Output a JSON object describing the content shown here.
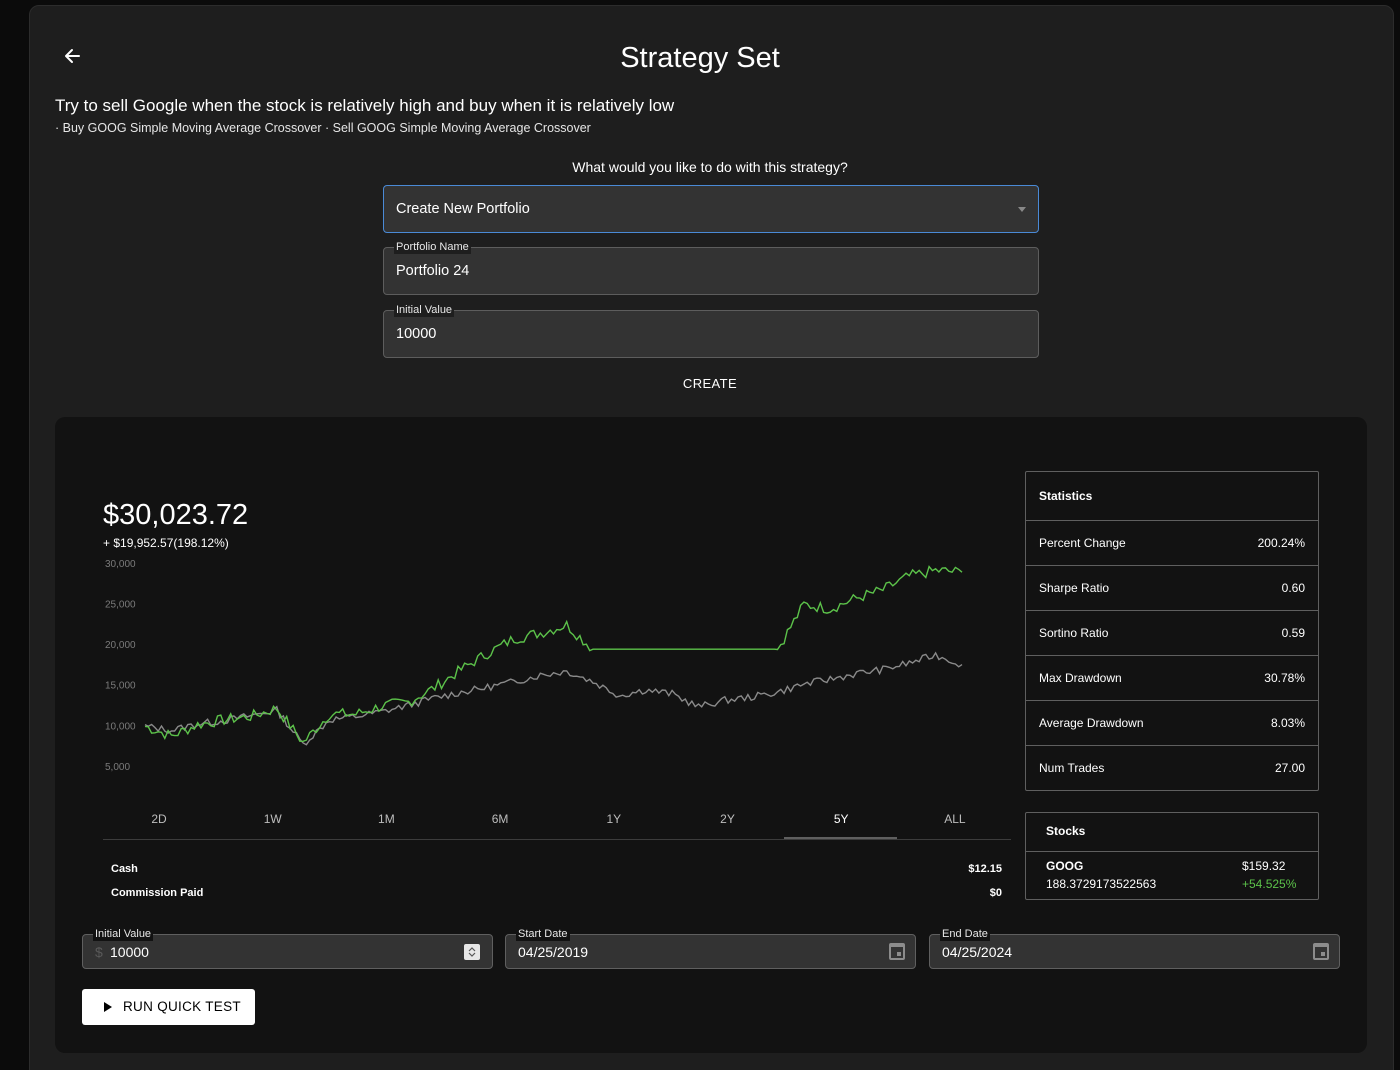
{
  "header": {
    "back_icon": "arrow-left-icon",
    "title": "Strategy Set",
    "description": "Try to sell Google when the stock is relatively high and buy when it is relatively low",
    "sub_description": "· Buy GOOG Simple Moving Average Crossover · Sell GOOG Simple Moving Average Crossover"
  },
  "form": {
    "question": "What would you like to do with this strategy?",
    "action_value": "Create New Portfolio",
    "portfolio_name_label": "Portfolio Name",
    "portfolio_name_value": "Portfolio 24",
    "initial_value_label": "Initial Value",
    "initial_value_value": "10000",
    "create_label": "CREATE"
  },
  "summary": {
    "value": "$30,023.72",
    "change": "+ $19,952.57(198.12%)"
  },
  "ranges": [
    "2D",
    "1W",
    "1M",
    "6M",
    "1Y",
    "2Y",
    "5Y",
    "ALL"
  ],
  "active_range": "5Y",
  "account": {
    "cash_label": "Cash",
    "cash_value": "$12.15",
    "commission_label": "Commission Paid",
    "commission_value": "$0"
  },
  "statistics": {
    "title": "Statistics",
    "rows": [
      {
        "label": "Percent Change",
        "value": "200.24%"
      },
      {
        "label": "Sharpe Ratio",
        "value": "0.60"
      },
      {
        "label": "Sortino Ratio",
        "value": "0.59"
      },
      {
        "label": "Max Drawdown",
        "value": "30.78%"
      },
      {
        "label": "Average Drawdown",
        "value": "8.03%"
      },
      {
        "label": "Num Trades",
        "value": "27.00"
      }
    ]
  },
  "stocks": {
    "title": "Stocks",
    "items": [
      {
        "symbol": "GOOG",
        "shares": "188.3729173522563",
        "price": "$159.32",
        "change": "+54.525%"
      }
    ]
  },
  "backtest": {
    "initial_value_label": "Initial Value",
    "currency_prefix": "$",
    "initial_value": "10000",
    "start_label": "Start Date",
    "start_value": "04/25/2019",
    "end_label": "End Date",
    "end_value": "04/25/2024",
    "run_label": "RUN QUICK TEST",
    "calendar_icon": "calendar-icon",
    "play_icon": "play-icon",
    "stepper_icon": "stepper-icon"
  },
  "colors": {
    "strategy_line": "#5cc24a",
    "benchmark_line": "#8a8a8a",
    "positive": "#5cc24a",
    "accent_border": "#4a8ad6"
  },
  "chart_data": {
    "type": "line",
    "y_ticks": [
      "30,000",
      "25,000",
      "20,000",
      "15,000",
      "10,000",
      "5,000"
    ],
    "y_tick_values": [
      30000,
      25000,
      20000,
      15000,
      10000,
      5000
    ],
    "ylim": [
      3500,
      30500
    ],
    "x": [
      "2019-04",
      "2019-06",
      "2019-08",
      "2019-10",
      "2019-12",
      "2020-02",
      "2020-03",
      "2020-05",
      "2020-07",
      "2020-09",
      "2020-11",
      "2021-01",
      "2021-03",
      "2021-05",
      "2021-07",
      "2021-09",
      "2021-11",
      "2022-01",
      "2022-03",
      "2022-05",
      "2022-07",
      "2022-09",
      "2022-11",
      "2023-01",
      "2023-03",
      "2023-05",
      "2023-07",
      "2023-09",
      "2023-11",
      "2024-01",
      "2024-03",
      "2024-04"
    ],
    "series": [
      {
        "values": [
          10000,
          8800,
          10200,
          10800,
          11200,
          12200,
          8000,
          11500,
          11500,
          12500,
          13000,
          14800,
          17000,
          19000,
          20800,
          21500,
          22500,
          19500,
          19500,
          19500,
          19500,
          19500,
          19500,
          19500,
          19500,
          25000,
          24500,
          25800,
          26800,
          28500,
          29200,
          29000
        ]
      },
      {
        "values": [
          10000,
          9500,
          10300,
          10700,
          11300,
          12000,
          7800,
          10800,
          11200,
          11800,
          12600,
          13500,
          14200,
          14800,
          15500,
          16300,
          16800,
          15500,
          13800,
          14500,
          14000,
          12400,
          13200,
          13600,
          14200,
          15200,
          15800,
          16500,
          17000,
          17800,
          18800,
          17600
        ]
      }
    ]
  }
}
